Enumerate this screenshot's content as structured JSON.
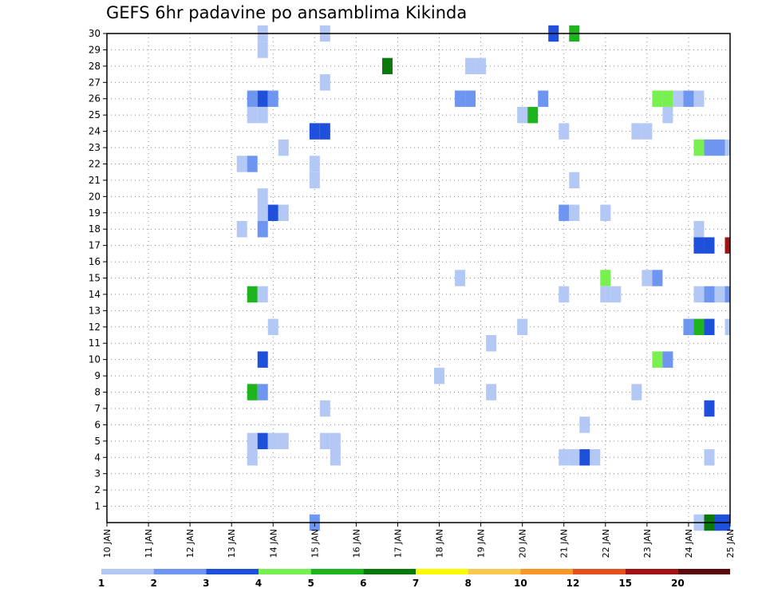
{
  "chart_data": {
    "type": "heatmap",
    "title": "GEFS 6hr padavine po ansamblima Kikinda",
    "xlabel": "",
    "ylabel": "",
    "x_tick_labels": [
      "10 JAN",
      "11 JAN",
      "12 JAN",
      "13 JAN",
      "14 JAN",
      "15 JAN",
      "16 JAN",
      "17 JAN",
      "18 JAN",
      "19 JAN",
      "20 JAN",
      "21 JAN",
      "22 JAN",
      "23 JAN",
      "24 JAN",
      "25 JAN"
    ],
    "y_tick_labels": [
      "1",
      "2",
      "3",
      "4",
      "5",
      "6",
      "7",
      "8",
      "9",
      "10",
      "11",
      "12",
      "13",
      "14",
      "15",
      "16",
      "17",
      "18",
      "19",
      "20",
      "21",
      "22",
      "23",
      "24",
      "25",
      "26",
      "27",
      "28",
      "29",
      "30"
    ],
    "xlim": [
      10,
      25
    ],
    "ylim": [
      0,
      30
    ],
    "grid": true,
    "colorbar": {
      "levels": [
        1,
        2,
        3,
        4,
        5,
        6,
        7,
        8,
        10,
        12,
        15,
        20
      ],
      "colors": [
        "#b4c8f5",
        "#6e96f0",
        "#1e50dc",
        "#78f050",
        "#1eb41e",
        "#0a780a",
        "#fafa00",
        "#fac850",
        "#fa9628",
        "#e6501e",
        "#a01414",
        "#5a0a0a"
      ],
      "labels": [
        "1",
        "2",
        "3",
        "4",
        "5",
        "6",
        "7",
        "8",
        "10",
        "12",
        "15",
        "20"
      ]
    },
    "cells": [
      {
        "t": 13.75,
        "m": 30,
        "c": 1
      },
      {
        "t": 15.25,
        "m": 30,
        "c": 1
      },
      {
        "t": 20.75,
        "m": 30,
        "c": 3
      },
      {
        "t": 21.25,
        "m": 30,
        "c": 5
      },
      {
        "t": 13.75,
        "m": 29,
        "c": 1
      },
      {
        "t": 16.75,
        "m": 28,
        "c": 6
      },
      {
        "t": 18.75,
        "m": 28,
        "c": 1
      },
      {
        "t": 19.0,
        "m": 28,
        "c": 1
      },
      {
        "t": 15.25,
        "m": 27,
        "c": 1
      },
      {
        "t": 13.5,
        "m": 26,
        "c": 2
      },
      {
        "t": 13.75,
        "m": 26,
        "c": 3
      },
      {
        "t": 14.0,
        "m": 26,
        "c": 2
      },
      {
        "t": 18.5,
        "m": 26,
        "c": 2
      },
      {
        "t": 18.75,
        "m": 26,
        "c": 2
      },
      {
        "t": 20.5,
        "m": 26,
        "c": 2
      },
      {
        "t": 23.25,
        "m": 26,
        "c": 4
      },
      {
        "t": 23.5,
        "m": 26,
        "c": 4
      },
      {
        "t": 23.75,
        "m": 26,
        "c": 1
      },
      {
        "t": 24.0,
        "m": 26,
        "c": 2
      },
      {
        "t": 24.25,
        "m": 26,
        "c": 1
      },
      {
        "t": 13.5,
        "m": 25,
        "c": 1
      },
      {
        "t": 13.75,
        "m": 25,
        "c": 1
      },
      {
        "t": 20.0,
        "m": 25,
        "c": 1
      },
      {
        "t": 20.25,
        "m": 25,
        "c": 5
      },
      {
        "t": 23.5,
        "m": 25,
        "c": 1
      },
      {
        "t": 15.0,
        "m": 24,
        "c": 3
      },
      {
        "t": 15.25,
        "m": 24,
        "c": 3
      },
      {
        "t": 21.0,
        "m": 24,
        "c": 1
      },
      {
        "t": 22.75,
        "m": 24,
        "c": 1
      },
      {
        "t": 23.0,
        "m": 24,
        "c": 1
      },
      {
        "t": 14.25,
        "m": 23,
        "c": 1
      },
      {
        "t": 24.25,
        "m": 23,
        "c": 4
      },
      {
        "t": 24.5,
        "m": 23,
        "c": 2
      },
      {
        "t": 24.75,
        "m": 23,
        "c": 2
      },
      {
        "t": 25.0,
        "m": 23,
        "c": 1
      },
      {
        "t": 13.25,
        "m": 22,
        "c": 1
      },
      {
        "t": 13.5,
        "m": 22,
        "c": 2
      },
      {
        "t": 15.0,
        "m": 22,
        "c": 1
      },
      {
        "t": 15.0,
        "m": 21,
        "c": 1
      },
      {
        "t": 21.25,
        "m": 21,
        "c": 1
      },
      {
        "t": 13.75,
        "m": 20,
        "c": 1
      },
      {
        "t": 13.75,
        "m": 19,
        "c": 1
      },
      {
        "t": 14.0,
        "m": 19,
        "c": 3
      },
      {
        "t": 14.25,
        "m": 19,
        "c": 1
      },
      {
        "t": 21.0,
        "m": 19,
        "c": 2
      },
      {
        "t": 21.25,
        "m": 19,
        "c": 1
      },
      {
        "t": 22.0,
        "m": 19,
        "c": 1
      },
      {
        "t": 13.25,
        "m": 18,
        "c": 1
      },
      {
        "t": 13.75,
        "m": 18,
        "c": 2
      },
      {
        "t": 24.25,
        "m": 18,
        "c": 1
      },
      {
        "t": 24.25,
        "m": 17,
        "c": 3
      },
      {
        "t": 24.5,
        "m": 17,
        "c": 3
      },
      {
        "t": 25.0,
        "m": 17,
        "c": 11
      },
      {
        "t": 18.5,
        "m": 15,
        "c": 1
      },
      {
        "t": 22.0,
        "m": 15,
        "c": 4
      },
      {
        "t": 23.0,
        "m": 15,
        "c": 1
      },
      {
        "t": 23.25,
        "m": 15,
        "c": 2
      },
      {
        "t": 13.5,
        "m": 14,
        "c": 5
      },
      {
        "t": 13.75,
        "m": 14,
        "c": 1
      },
      {
        "t": 21.0,
        "m": 14,
        "c": 1
      },
      {
        "t": 22.0,
        "m": 14,
        "c": 1
      },
      {
        "t": 22.25,
        "m": 14,
        "c": 1
      },
      {
        "t": 24.25,
        "m": 14,
        "c": 1
      },
      {
        "t": 24.5,
        "m": 14,
        "c": 2
      },
      {
        "t": 24.75,
        "m": 14,
        "c": 1
      },
      {
        "t": 25.0,
        "m": 14,
        "c": 2
      },
      {
        "t": 14.0,
        "m": 12,
        "c": 1
      },
      {
        "t": 20.0,
        "m": 12,
        "c": 1
      },
      {
        "t": 24.0,
        "m": 12,
        "c": 2
      },
      {
        "t": 24.25,
        "m": 12,
        "c": 5
      },
      {
        "t": 24.5,
        "m": 12,
        "c": 3
      },
      {
        "t": 25.0,
        "m": 12,
        "c": 1
      },
      {
        "t": 19.25,
        "m": 11,
        "c": 1
      },
      {
        "t": 13.75,
        "m": 10,
        "c": 3
      },
      {
        "t": 23.25,
        "m": 10,
        "c": 4
      },
      {
        "t": 23.5,
        "m": 10,
        "c": 2
      },
      {
        "t": 18.0,
        "m": 9,
        "c": 1
      },
      {
        "t": 13.5,
        "m": 8,
        "c": 5
      },
      {
        "t": 13.75,
        "m": 8,
        "c": 2
      },
      {
        "t": 19.25,
        "m": 8,
        "c": 1
      },
      {
        "t": 22.75,
        "m": 8,
        "c": 1
      },
      {
        "t": 15.25,
        "m": 7,
        "c": 1
      },
      {
        "t": 24.5,
        "m": 7,
        "c": 3
      },
      {
        "t": 21.5,
        "m": 6,
        "c": 1
      },
      {
        "t": 13.5,
        "m": 5,
        "c": 1
      },
      {
        "t": 13.75,
        "m": 5,
        "c": 3
      },
      {
        "t": 14.0,
        "m": 5,
        "c": 1
      },
      {
        "t": 14.25,
        "m": 5,
        "c": 1
      },
      {
        "t": 15.25,
        "m": 5,
        "c": 1
      },
      {
        "t": 15.5,
        "m": 5,
        "c": 1
      },
      {
        "t": 13.5,
        "m": 4,
        "c": 1
      },
      {
        "t": 15.5,
        "m": 4,
        "c": 1
      },
      {
        "t": 21.0,
        "m": 4,
        "c": 1
      },
      {
        "t": 21.25,
        "m": 4,
        "c": 1
      },
      {
        "t": 21.5,
        "m": 4,
        "c": 3
      },
      {
        "t": 21.75,
        "m": 4,
        "c": 1
      },
      {
        "t": 24.5,
        "m": 4,
        "c": 1
      },
      {
        "t": 15.0,
        "m": 0,
        "c": 2
      },
      {
        "t": 24.25,
        "m": 0,
        "c": 1
      },
      {
        "t": 24.5,
        "m": 0,
        "c": 6
      },
      {
        "t": 24.75,
        "m": 0,
        "c": 3
      },
      {
        "t": 25.0,
        "m": 0,
        "c": 3
      }
    ]
  }
}
